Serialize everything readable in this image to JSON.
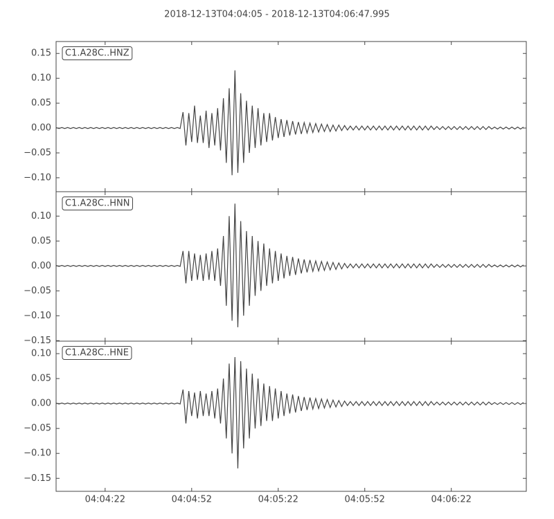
{
  "chart_data": [
    {
      "type": "line",
      "title": "2018-12-13T04:04:05  -  2018-12-13T04:06:47.995",
      "x": [
        0,
        1,
        2,
        3,
        4,
        5,
        6,
        7,
        8,
        9,
        10,
        11,
        12,
        13,
        14,
        15,
        16,
        17,
        18,
        19,
        20,
        21,
        22,
        23,
        24,
        25,
        26,
        27,
        28,
        29,
        30,
        31,
        32,
        33,
        34,
        35,
        36,
        37,
        38,
        39,
        40,
        41,
        42,
        43,
        44,
        45,
        46,
        47,
        48,
        49,
        50,
        51,
        52,
        53,
        54,
        55,
        56,
        57,
        58,
        59,
        60,
        61,
        62,
        63,
        64,
        65,
        66,
        67,
        68,
        69,
        70,
        71,
        72,
        73,
        74,
        75,
        76,
        77,
        78,
        79,
        80,
        81,
        82,
        83,
        84,
        85,
        86,
        87,
        88,
        89,
        90,
        91,
        92,
        93,
        94,
        95,
        96,
        97,
        98,
        99,
        100,
        101,
        102,
        103,
        104,
        105,
        106,
        107,
        108,
        109,
        110,
        111,
        112,
        113,
        114,
        115,
        116,
        117,
        118,
        119,
        120,
        121,
        122,
        123,
        124,
        125,
        126,
        127,
        128,
        129,
        130,
        131,
        132,
        133,
        134,
        135,
        136,
        137,
        138,
        139,
        140,
        141,
        142,
        143,
        144,
        145,
        146,
        147,
        148,
        149,
        150,
        151,
        152,
        153,
        154,
        155,
        156,
        157,
        158,
        159,
        160,
        161,
        162
      ],
      "series": [
        {
          "name": "C1.A28C..HNZ",
          "color": "#444444",
          "values": [
            0.001,
            -0.001,
            0.001,
            -0.001,
            0.001,
            -0.001,
            0.001,
            -0.001,
            0.001,
            -0.001,
            0.001,
            -0.001,
            0.001,
            -0.001,
            0.001,
            -0.001,
            0.001,
            -0.001,
            0.001,
            -0.001,
            0.001,
            -0.001,
            0.001,
            -0.001,
            0.001,
            -0.001,
            0.001,
            -0.001,
            0.001,
            -0.001,
            0.001,
            -0.001,
            0.001,
            -0.001,
            0.001,
            -0.001,
            0.001,
            -0.001,
            0.001,
            -0.001,
            0.001,
            -0.001,
            0.001,
            -0.001,
            0.032,
            -0.035,
            0.03,
            -0.028,
            0.045,
            -0.03,
            0.025,
            -0.03,
            0.035,
            -0.04,
            0.03,
            -0.035,
            0.04,
            -0.045,
            0.06,
            -0.07,
            0.08,
            -0.095,
            0.116,
            -0.09,
            0.07,
            -0.07,
            0.055,
            -0.05,
            0.045,
            -0.04,
            0.04,
            -0.035,
            0.03,
            -0.028,
            0.03,
            -0.025,
            0.022,
            -0.02,
            0.018,
            -0.018,
            0.016,
            -0.015,
            0.014,
            -0.013,
            0.012,
            -0.012,
            0.011,
            -0.01,
            0.01,
            -0.009,
            0.009,
            -0.008,
            0.008,
            -0.007,
            0.007,
            -0.007,
            0.006,
            -0.006,
            0.006,
            -0.005,
            0.005,
            -0.004,
            0.004,
            -0.004,
            0.004,
            -0.004,
            0.004,
            -0.004,
            0.004,
            -0.004,
            0.004,
            -0.004,
            0.004,
            -0.004,
            0.004,
            -0.004,
            0.004,
            -0.004,
            0.004,
            -0.004,
            0.004,
            -0.004,
            0.004,
            -0.004,
            0.004,
            -0.004,
            0.004,
            -0.004,
            0.004,
            -0.004,
            0.004,
            -0.003,
            0.003,
            -0.003,
            0.003,
            -0.003,
            0.003,
            -0.003,
            0.003,
            -0.003,
            0.003,
            -0.003,
            0.003,
            -0.003,
            0.003,
            -0.003,
            0.003,
            -0.003,
            0.003,
            -0.003,
            0.003,
            -0.002,
            0.002,
            -0.002,
            0.002,
            -0.002,
            0.002,
            -0.002,
            0.002,
            -0.002,
            0.002,
            -0.002,
            0.002
          ]
        }
      ],
      "xlim": [
        0,
        162.995
      ],
      "ylim": [
        -0.128,
        0.174
      ],
      "yticks": [
        {
          "value": -0.1,
          "label": "−0.10"
        },
        {
          "value": -0.05,
          "label": "−0.05"
        },
        {
          "value": 0,
          "label": "0.00"
        },
        0.05,
        {
          "value": 0.1,
          "label": "0.10"
        },
        0.15
      ]
    },
    {
      "type": "line",
      "x": [
        0,
        1,
        2,
        3,
        4,
        5,
        6,
        7,
        8,
        9,
        10,
        11,
        12,
        13,
        14,
        15,
        16,
        17,
        18,
        19,
        20,
        21,
        22,
        23,
        24,
        25,
        26,
        27,
        28,
        29,
        30,
        31,
        32,
        33,
        34,
        35,
        36,
        37,
        38,
        39,
        40,
        41,
        42,
        43,
        44,
        45,
        46,
        47,
        48,
        49,
        50,
        51,
        52,
        53,
        54,
        55,
        56,
        57,
        58,
        59,
        60,
        61,
        62,
        63,
        64,
        65,
        66,
        67,
        68,
        69,
        70,
        71,
        72,
        73,
        74,
        75,
        76,
        77,
        78,
        79,
        80,
        81,
        82,
        83,
        84,
        85,
        86,
        87,
        88,
        89,
        90,
        91,
        92,
        93,
        94,
        95,
        96,
        97,
        98,
        99,
        100,
        101,
        102,
        103,
        104,
        105,
        106,
        107,
        108,
        109,
        110,
        111,
        112,
        113,
        114,
        115,
        116,
        117,
        118,
        119,
        120,
        121,
        122,
        123,
        124,
        125,
        126,
        127,
        128,
        129,
        130,
        131,
        132,
        133,
        134,
        135,
        136,
        137,
        138,
        139,
        140,
        141,
        142,
        143,
        144,
        145,
        146,
        147,
        148,
        149,
        150,
        151,
        152,
        153,
        154,
        155,
        156,
        157,
        158,
        159,
        160,
        161,
        162
      ],
      "series": [
        {
          "name": "C1.A28C..HNN",
          "color": "#444444",
          "values": [
            0.001,
            -0.001,
            0.001,
            -0.001,
            0.001,
            -0.001,
            0.001,
            -0.001,
            0.001,
            -0.001,
            0.001,
            -0.001,
            0.001,
            -0.001,
            0.001,
            -0.001,
            0.001,
            -0.001,
            0.001,
            -0.001,
            0.001,
            -0.001,
            0.001,
            -0.001,
            0.001,
            -0.001,
            0.001,
            -0.001,
            0.001,
            -0.001,
            0.001,
            -0.001,
            0.001,
            -0.001,
            0.001,
            -0.001,
            0.001,
            -0.001,
            0.001,
            -0.001,
            0.001,
            -0.001,
            0.001,
            -0.001,
            0.03,
            -0.035,
            0.03,
            -0.03,
            0.025,
            -0.028,
            0.022,
            -0.03,
            0.025,
            -0.028,
            0.03,
            -0.03,
            0.035,
            -0.04,
            0.06,
            -0.08,
            0.1,
            -0.11,
            0.125,
            -0.123,
            0.09,
            -0.1,
            0.07,
            -0.08,
            0.06,
            -0.06,
            0.05,
            -0.05,
            0.045,
            -0.04,
            0.035,
            -0.035,
            0.03,
            -0.03,
            0.025,
            -0.025,
            0.02,
            -0.02,
            0.018,
            -0.018,
            0.015,
            -0.015,
            0.013,
            -0.013,
            0.012,
            -0.011,
            0.01,
            -0.01,
            0.009,
            -0.009,
            0.008,
            -0.008,
            0.007,
            -0.007,
            0.006,
            -0.006,
            0.005,
            -0.004,
            0.004,
            -0.004,
            0.004,
            -0.004,
            0.004,
            -0.004,
            0.004,
            -0.004,
            0.004,
            -0.004,
            0.004,
            -0.004,
            0.004,
            -0.004,
            0.004,
            -0.004,
            0.004,
            -0.004,
            0.004,
            -0.004,
            0.004,
            -0.004,
            0.004,
            -0.004,
            0.004,
            -0.004,
            0.004,
            -0.004,
            0.004,
            -0.003,
            0.003,
            -0.003,
            0.003,
            -0.003,
            0.003,
            -0.003,
            0.003,
            -0.003,
            0.003,
            -0.003,
            0.003,
            -0.003,
            0.003,
            -0.003,
            0.003,
            -0.003,
            0.003,
            -0.003,
            0.003,
            -0.002,
            0.002,
            -0.002,
            0.002,
            -0.002,
            0.002,
            -0.002,
            0.002,
            -0.002,
            0.002,
            -0.002,
            0.002
          ]
        }
      ],
      "xlim": [
        0,
        162.995
      ],
      "ylim": [
        -0.151,
        0.149
      ],
      "yticks": [
        {
          "value": -0.15,
          "label": "−0.15"
        },
        {
          "value": -0.1,
          "label": "−0.10"
        },
        {
          "value": -0.05,
          "label": "−0.05"
        },
        {
          "value": 0,
          "label": "0.00"
        },
        0.05,
        {
          "value": 0.1,
          "label": "0.10"
        }
      ]
    },
    {
      "type": "line",
      "x": [
        0,
        1,
        2,
        3,
        4,
        5,
        6,
        7,
        8,
        9,
        10,
        11,
        12,
        13,
        14,
        15,
        16,
        17,
        18,
        19,
        20,
        21,
        22,
        23,
        24,
        25,
        26,
        27,
        28,
        29,
        30,
        31,
        32,
        33,
        34,
        35,
        36,
        37,
        38,
        39,
        40,
        41,
        42,
        43,
        44,
        45,
        46,
        47,
        48,
        49,
        50,
        51,
        52,
        53,
        54,
        55,
        56,
        57,
        58,
        59,
        60,
        61,
        62,
        63,
        64,
        65,
        66,
        67,
        68,
        69,
        70,
        71,
        72,
        73,
        74,
        75,
        76,
        77,
        78,
        79,
        80,
        81,
        82,
        83,
        84,
        85,
        86,
        87,
        88,
        89,
        90,
        91,
        92,
        93,
        94,
        95,
        96,
        97,
        98,
        99,
        100,
        101,
        102,
        103,
        104,
        105,
        106,
        107,
        108,
        109,
        110,
        111,
        112,
        113,
        114,
        115,
        116,
        117,
        118,
        119,
        120,
        121,
        122,
        123,
        124,
        125,
        126,
        127,
        128,
        129,
        130,
        131,
        132,
        133,
        134,
        135,
        136,
        137,
        138,
        139,
        140,
        141,
        142,
        143,
        144,
        145,
        146,
        147,
        148,
        149,
        150,
        151,
        152,
        153,
        154,
        155,
        156,
        157,
        158,
        159,
        160,
        161,
        162
      ],
      "series": [
        {
          "name": "C1.A28C..HNE",
          "color": "#444444",
          "values": [
            0.001,
            -0.001,
            0.001,
            -0.001,
            0.001,
            -0.001,
            0.001,
            -0.001,
            0.001,
            -0.001,
            0.001,
            -0.001,
            0.001,
            -0.001,
            0.001,
            -0.001,
            0.001,
            -0.001,
            0.001,
            -0.001,
            0.001,
            -0.001,
            0.001,
            -0.001,
            0.001,
            -0.001,
            0.001,
            -0.001,
            0.001,
            -0.001,
            0.001,
            -0.001,
            0.001,
            -0.001,
            0.001,
            -0.001,
            0.001,
            -0.001,
            0.001,
            -0.001,
            0.001,
            -0.001,
            0.001,
            -0.001,
            0.028,
            -0.04,
            0.025,
            -0.025,
            0.022,
            -0.03,
            0.025,
            -0.025,
            0.02,
            -0.025,
            0.025,
            -0.03,
            0.03,
            -0.04,
            0.05,
            -0.07,
            0.08,
            -0.1,
            0.093,
            -0.13,
            0.085,
            -0.09,
            0.07,
            -0.07,
            0.06,
            -0.05,
            0.05,
            -0.045,
            0.04,
            -0.035,
            0.035,
            -0.035,
            0.03,
            -0.03,
            0.025,
            -0.025,
            0.02,
            -0.02,
            0.018,
            -0.018,
            0.015,
            -0.015,
            0.013,
            -0.013,
            0.012,
            -0.011,
            0.01,
            -0.01,
            0.009,
            -0.009,
            0.008,
            -0.008,
            0.007,
            -0.007,
            0.006,
            -0.006,
            0.005,
            -0.004,
            0.004,
            -0.004,
            0.004,
            -0.004,
            0.004,
            -0.004,
            0.004,
            -0.004,
            0.004,
            -0.004,
            0.004,
            -0.004,
            0.004,
            -0.004,
            0.004,
            -0.004,
            0.004,
            -0.004,
            0.004,
            -0.004,
            0.004,
            -0.004,
            0.004,
            -0.004,
            0.004,
            -0.004,
            0.004,
            -0.004,
            0.004,
            -0.003,
            0.003,
            -0.003,
            0.003,
            -0.003,
            0.003,
            -0.003,
            0.003,
            -0.003,
            0.003,
            -0.003,
            0.003,
            -0.003,
            0.003,
            -0.003,
            0.003,
            -0.003,
            0.003,
            -0.003,
            0.003,
            -0.002,
            0.002,
            -0.002,
            0.002,
            -0.002,
            0.002,
            -0.002,
            0.002,
            -0.002,
            0.002,
            -0.002,
            0.002
          ]
        }
      ],
      "xlim": [
        0,
        162.995
      ],
      "ylim": [
        -0.176,
        0.125
      ],
      "yticks": [
        {
          "value": -0.15,
          "label": "−0.15"
        },
        {
          "value": -0.1,
          "label": "−0.10"
        },
        {
          "value": -0.05,
          "label": "−0.05"
        },
        {
          "value": 0,
          "label": "0.00"
        },
        0.05,
        {
          "value": 0.1,
          "label": "0.10"
        }
      ],
      "xticks": [
        {
          "value": 17,
          "label": "04:04:22"
        },
        {
          "value": 47,
          "label": "04:04:52"
        },
        {
          "value": 77,
          "label": "04:05:22"
        },
        {
          "value": 107,
          "label": "04:05:52"
        },
        {
          "value": 137,
          "label": "04:06:22"
        }
      ]
    }
  ]
}
